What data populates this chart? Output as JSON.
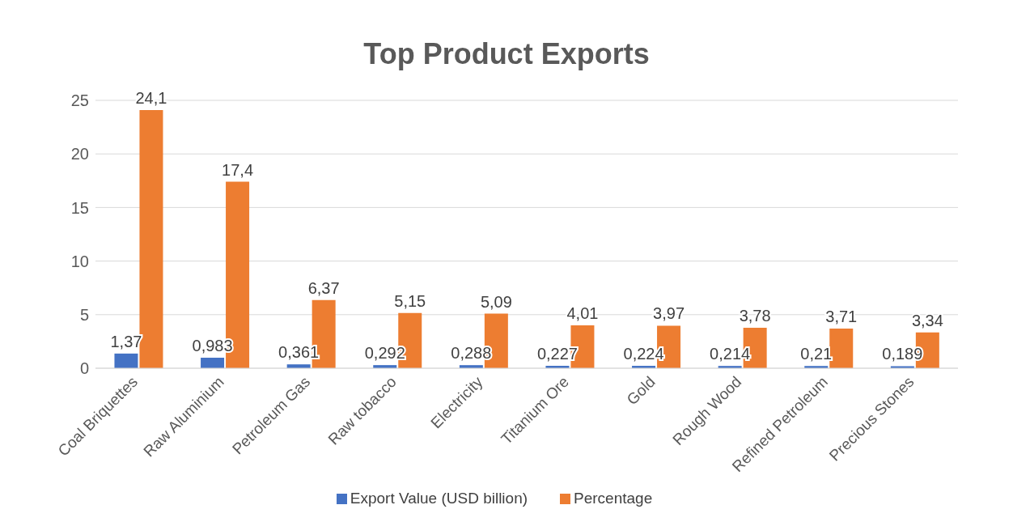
{
  "chart_data": {
    "type": "bar",
    "title": "Top Product Exports",
    "categories": [
      "Coal Briquettes",
      "Raw Aluminium",
      "Petroleum Gas",
      "Raw tobacco",
      "Electricity",
      "Titanium Ore",
      "Gold",
      "Rough Wood",
      "Refined Petroleum",
      "Precious Stones"
    ],
    "series": [
      {
        "name": "Export Value (USD billion)",
        "color": "#4472c4",
        "values": [
          1.37,
          0.983,
          0.361,
          0.292,
          0.288,
          0.227,
          0.224,
          0.214,
          0.21,
          0.189
        ],
        "value_labels": [
          "1,37",
          "0,983",
          "0,361",
          "0,292",
          "0,288",
          "0,227",
          "0,224",
          "0,214",
          "0,21",
          "0,189"
        ]
      },
      {
        "name": "Percentage",
        "color": "#ed7d31",
        "values": [
          24.1,
          17.4,
          6.37,
          5.15,
          5.09,
          4.01,
          3.97,
          3.78,
          3.71,
          3.34
        ],
        "value_labels": [
          "24,1",
          "17,4",
          "6,37",
          "5,15",
          "5,09",
          "4,01",
          "3,97",
          "3,78",
          "3,71",
          "3,34"
        ]
      }
    ],
    "ylim": [
      0,
      25
    ],
    "yticks": [
      0,
      5,
      10,
      15,
      20,
      25
    ],
    "grid": "y",
    "legend": "bottom"
  }
}
